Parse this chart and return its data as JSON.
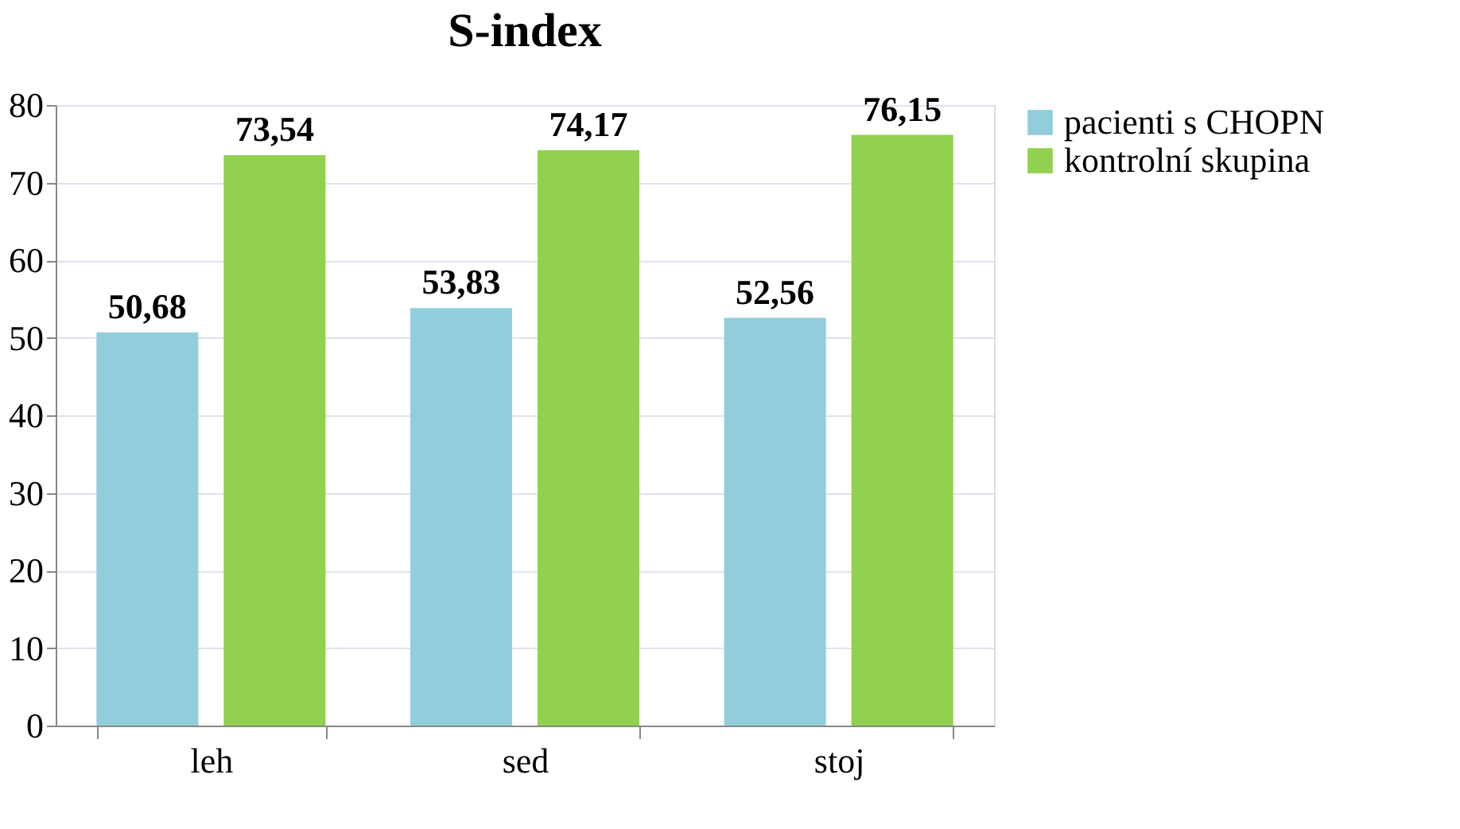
{
  "chart_data": {
    "type": "bar",
    "title": "S-index",
    "categories": [
      "leh",
      "sed",
      "stoj"
    ],
    "series": [
      {
        "name": "pacienti s CHOPN",
        "color": "#92cddc",
        "values": [
          50.68,
          53.83,
          52.56
        ],
        "value_labels": [
          "50,68",
          "53,83",
          "52,56"
        ]
      },
      {
        "name": "kontrolní skupina",
        "color": "#92d050",
        "values": [
          73.54,
          74.17,
          76.15
        ],
        "value_labels": [
          "73,54",
          "74,17",
          "76,15"
        ]
      }
    ],
    "ylim": [
      0,
      80
    ],
    "yticks": [
      0,
      10,
      20,
      30,
      40,
      50,
      60,
      70,
      80
    ],
    "grid": "y",
    "legend": "right"
  }
}
